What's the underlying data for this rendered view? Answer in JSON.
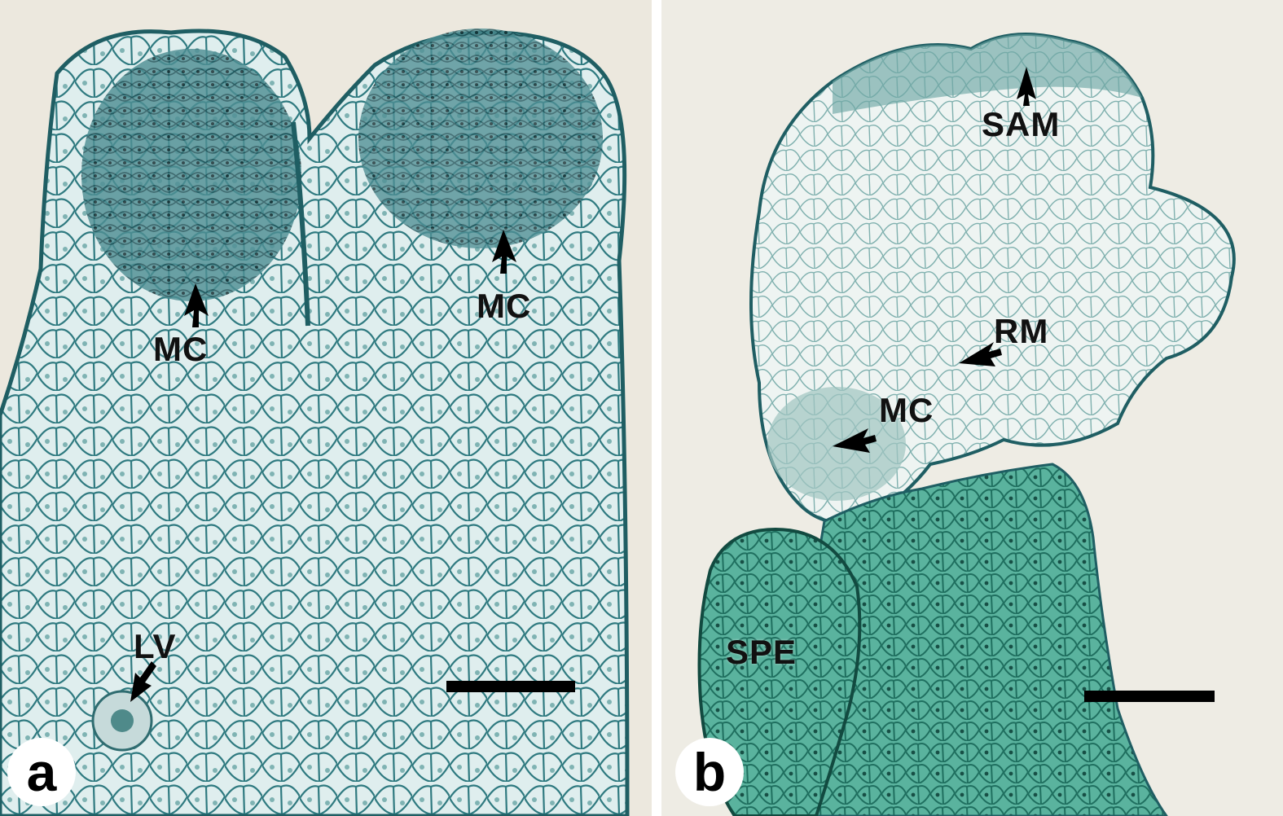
{
  "panels": [
    {
      "letter": "a",
      "labels": {
        "mc_left": "MC",
        "mc_right": "MC",
        "lv": "LV"
      }
    },
    {
      "letter": "b",
      "labels": {
        "sam": "SAM",
        "rm": "RM",
        "mc": "MC",
        "spe": "SPE"
      }
    }
  ],
  "colors": {
    "stain": "#3f8f92",
    "stain_dark": "#1f5e63",
    "green_stain": "#2f9a80",
    "background": "#ece8de"
  }
}
